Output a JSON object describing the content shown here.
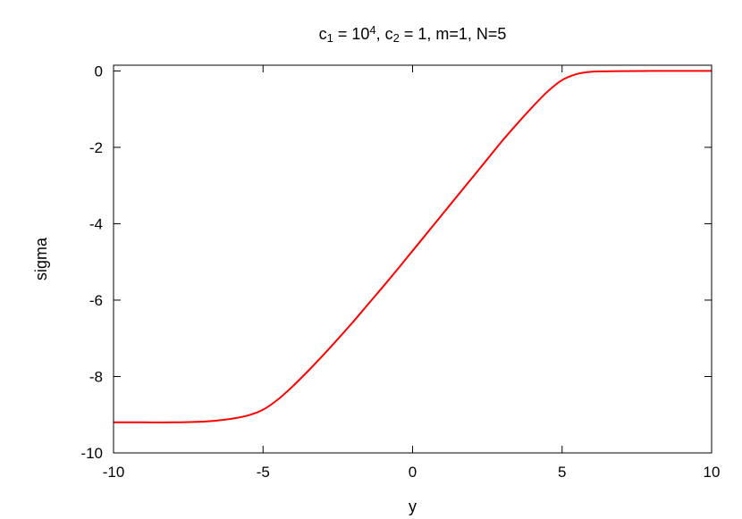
{
  "chart_data": {
    "type": "line",
    "title": {
      "parts": [
        {
          "text": "c",
          "shift": "none"
        },
        {
          "text": "1",
          "shift": "sub"
        },
        {
          "text": " = 10",
          "shift": "none"
        },
        {
          "text": "4",
          "shift": "sup"
        },
        {
          "text": ", c",
          "shift": "none"
        },
        {
          "text": "2",
          "shift": "sub"
        },
        {
          "text": " = 1, m=1, N=5",
          "shift": "none"
        }
      ]
    },
    "xlabel": "y",
    "ylabel": "sigma",
    "xlim": [
      -10,
      10
    ],
    "ylim": [
      -10,
      0.15
    ],
    "xticks": [
      -10,
      -5,
      0,
      5,
      10
    ],
    "yticks": [
      -10,
      -8,
      -6,
      -4,
      -2,
      0
    ],
    "grid": false,
    "series": [
      {
        "color": "#ff0000",
        "x": [
          -10,
          -9,
          -8,
          -7,
          -6.5,
          -6,
          -5.5,
          -5,
          -4.5,
          -4,
          -3.5,
          -3,
          -2.5,
          -2,
          -1.5,
          -1,
          -0.5,
          0,
          0.5,
          1,
          1.5,
          2,
          2.5,
          3,
          3.5,
          4,
          4.5,
          5,
          5.5,
          6,
          6.5,
          7,
          8,
          9,
          10
        ],
        "y": [
          -9.2,
          -9.2,
          -9.2,
          -9.18,
          -9.15,
          -9.1,
          -9.02,
          -8.87,
          -8.6,
          -8.25,
          -7.86,
          -7.45,
          -7.02,
          -6.58,
          -6.12,
          -5.66,
          -5.19,
          -4.71,
          -4.23,
          -3.75,
          -3.27,
          -2.79,
          -2.31,
          -1.83,
          -1.38,
          -0.95,
          -0.55,
          -0.24,
          -0.08,
          -0.02,
          -0.01,
          -0.005,
          0,
          0,
          0
        ]
      }
    ]
  }
}
